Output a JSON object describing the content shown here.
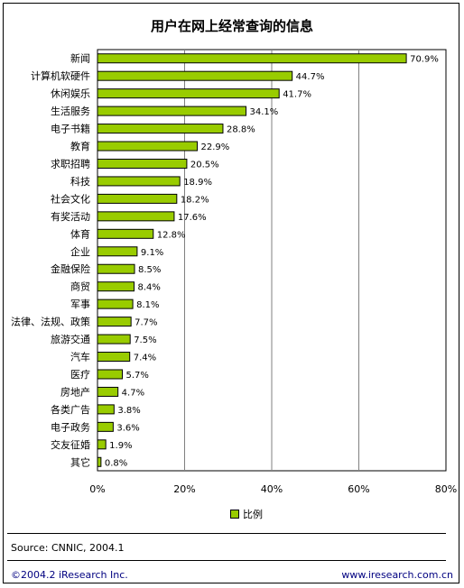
{
  "chart_data": {
    "type": "bar",
    "orientation": "horizontal",
    "title": "用户在网上经常查询的信息",
    "categories": [
      "新闻",
      "计算机软硬件",
      "休闲娱乐",
      "生活服务",
      "电子书籍",
      "教育",
      "求职招聘",
      "科技",
      "社会文化",
      "有奖活动",
      "体育",
      "企业",
      "金融保险",
      "商贸",
      "军事",
      "法律、法规、政策",
      "旅游交通",
      "汽车",
      "医疗",
      "房地产",
      "各类广告",
      "电子政务",
      "交友征婚",
      "其它"
    ],
    "values": [
      70.9,
      44.7,
      41.7,
      34.1,
      28.8,
      22.9,
      20.5,
      18.9,
      18.2,
      17.6,
      12.8,
      9.1,
      8.5,
      8.4,
      8.1,
      7.7,
      7.5,
      7.4,
      5.7,
      4.7,
      3.8,
      3.6,
      1.9,
      0.8
    ],
    "value_labels": [
      "70.9%",
      "44.7%",
      "41.7%",
      "34.1%",
      "28.8%",
      "22.9%",
      "20.5%",
      "18.9%",
      "18.2%",
      "17.6%",
      "12.8%",
      "9.1%",
      "8.5%",
      "8.4%",
      "8.1%",
      "7.7%",
      "7.5%",
      "7.4%",
      "5.7%",
      "4.7%",
      "3.8%",
      "3.6%",
      "1.9%",
      "0.8%"
    ],
    "xlim": [
      0,
      80
    ],
    "xticks": [
      0,
      20,
      40,
      60,
      80
    ],
    "xtick_labels": [
      "0%",
      "20%",
      "40%",
      "60%",
      "80%"
    ],
    "series": [
      {
        "name": "比例",
        "color": "#99cc00"
      }
    ],
    "grid": "vertical",
    "legend_position": "bottom"
  },
  "footer": {
    "source": "Source: CNNIC, 2004.1",
    "copyright": "©2004.2 iResearch Inc.",
    "website": "www.iresearch.com.cn"
  }
}
